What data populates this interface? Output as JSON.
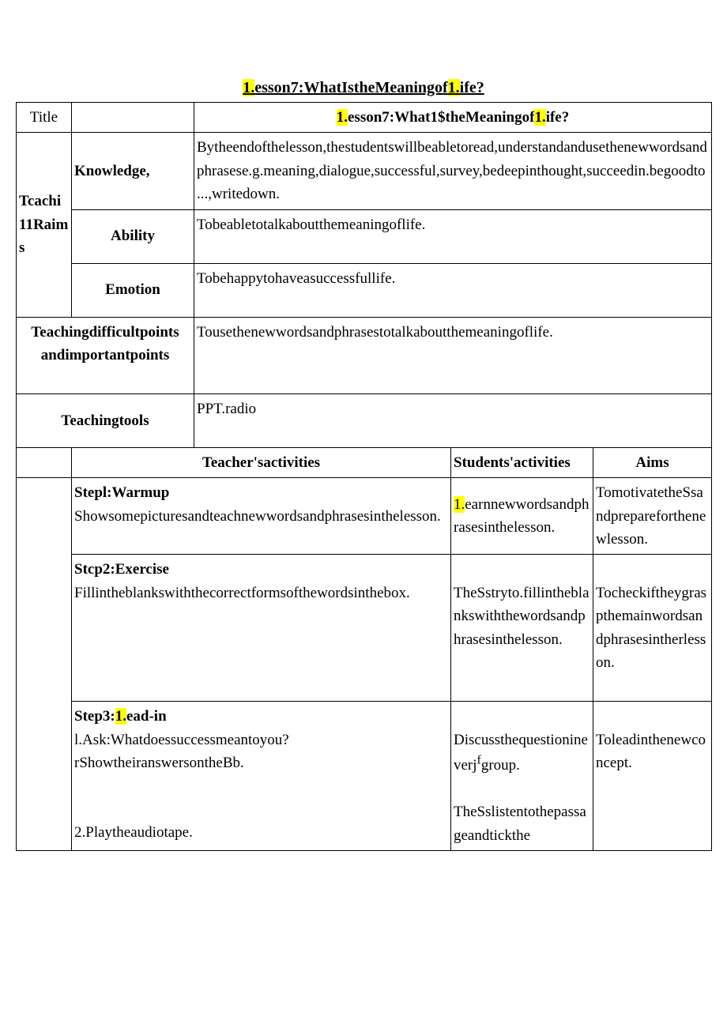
{
  "page_title": {
    "p1": "1.",
    "p2": "esson7:WhatIstheMeaningof",
    "p3": "1.",
    "p4": "ife?"
  },
  "row_title": {
    "label": "Title",
    "value_p1": "1.",
    "value_p2": "esson7:What1$theMeaningof",
    "value_p3": "1.",
    "value_p4": "ife?"
  },
  "aims": {
    "header": "Tcachi 11Raims",
    "knowledge_label": "Knowledge,",
    "knowledge_text": "Bytheendofthelesson,thestudentswillbeabletoread,understandandusethenewwordsandphrasese.g.meaning,dialogue,successful,survey,bedeepinthought,succeedin.begoodto...,writedown.",
    "ability_label": "Ability",
    "ability_text": "Tobeabletotalkaboutthemeaningoflife.",
    "emotion_label": "Emotion",
    "emotion_text": "Tobehappytohaveasuccessfullife."
  },
  "difficult": {
    "label": "Teachingdifficultpoints andimportantpoints",
    "text": "Tousethenewwordsandphrasestotalkaboutthemeaningoflife."
  },
  "tools": {
    "label": "Teachingtools",
    "text": "PPT.radio"
  },
  "headers": {
    "teacher": "Teacher'sactivities",
    "students": "Students'activities",
    "aims": "Aims"
  },
  "step1": {
    "head": "Stepl:Warmup",
    "teacher": "Showsomepicturesandteachnewwordsandphrasesinthelesson.",
    "students_p1": "1.",
    "students_p2": "earnnewwordsandphrasesinthelesson.",
    "aims": "TomotivatetheSsandprepareforthenewlesson."
  },
  "step2": {
    "head": "Stcp2:Exercise",
    "teacher": "Fillintheblankswiththecorrectformsofthewordsinthebox.",
    "students": "TheSstryto.fillintheblankswiththewordsandphrasesinthelesson.",
    "aims": "Tocheckiftheygraspthemainwordsandphrasesintherlesson."
  },
  "step3": {
    "head_p1": "Step3:",
    "head_p2": "1.",
    "head_p3": "ead-in",
    "teacher_l1": "l.Ask:Whatdoessuccessmeantoyou?rShowtheiranswersontheBb.",
    "teacher_l2": "2.Playtheaudiotape.",
    "students_l1_a": "Discussthequestioninever",
    "students_l1_b": "j",
    "students_l1_c": "f",
    "students_l1_d": "group.",
    "students_l2": "TheSslistentothepassageandtickthe",
    "aims": "Toleadinthenewconcept."
  }
}
